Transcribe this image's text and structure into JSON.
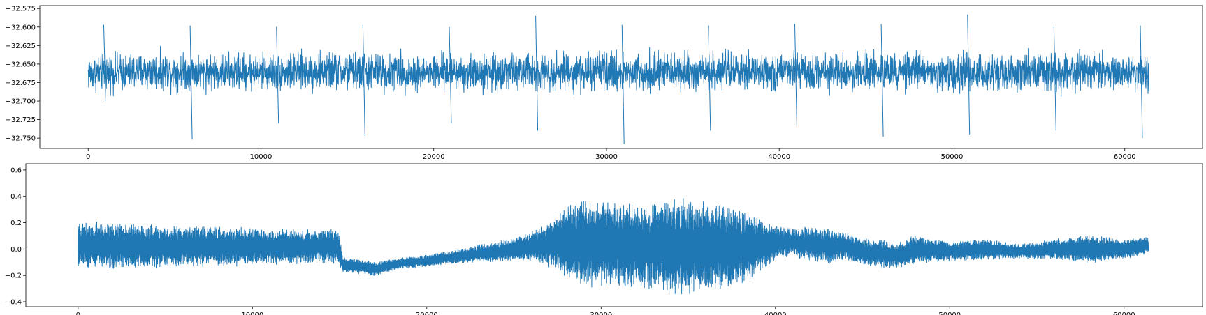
{
  "chart_data": [
    {
      "type": "line",
      "title": "",
      "xlabel": "",
      "ylabel": "",
      "xlim": [
        -2800,
        64500
      ],
      "ylim": [
        -32.764,
        -32.571
      ],
      "xticks": [
        0,
        10000,
        20000,
        30000,
        40000,
        50000,
        60000
      ],
      "xtick_labels": [
        "0",
        "10000",
        "20000",
        "30000",
        "40000",
        "50000",
        "60000"
      ],
      "yticks": [
        -32.575,
        -32.6,
        -32.625,
        -32.65,
        -32.675,
        -32.7,
        -32.725,
        -32.75
      ],
      "ytick_labels": [
        "−32.575",
        "−32.600",
        "−32.625",
        "−32.650",
        "−32.675",
        "−32.700",
        "−32.725",
        "−32.750"
      ],
      "grid": false,
      "color": "#1f77b4",
      "series": [
        {
          "name": "",
          "x": [
            0,
            5000,
            10000,
            15000,
            20000,
            25000,
            30000,
            35000,
            40000,
            45000,
            50000,
            55000,
            60000,
            61400
          ],
          "y": [
            -32.662,
            -32.66,
            -32.661,
            -32.66,
            -32.662,
            -32.66,
            -32.661,
            -32.66,
            -32.661,
            -32.66,
            -32.661,
            -32.66,
            -32.661,
            -32.662
          ],
          "band_half_width": [
            0.022,
            0.022,
            0.022,
            0.023,
            0.022,
            0.022,
            0.023,
            0.022,
            0.022,
            0.022,
            0.022,
            0.022,
            0.022,
            0.022
          ],
          "max_values": [
            -32.597,
            -32.598,
            -32.6,
            -32.597,
            -32.6,
            -32.585,
            -32.597,
            -32.598,
            -32.596,
            -32.596,
            -32.583,
            -32.6,
            -32.598,
            -32.61
          ],
          "min_values": [
            -32.7,
            -32.752,
            -32.73,
            -32.747,
            -32.73,
            -32.74,
            -32.758,
            -32.74,
            -32.735,
            -32.748,
            -32.745,
            -32.74,
            -32.75,
            -32.712
          ]
        }
      ]
    },
    {
      "type": "line",
      "title": "",
      "xlabel": "",
      "ylabel": "",
      "xlim": [
        -3000,
        64500
      ],
      "ylim": [
        -0.437,
        0.647
      ],
      "xticks": [
        0,
        10000,
        20000,
        30000,
        40000,
        50000,
        60000
      ],
      "xtick_labels": [
        "0",
        "10000",
        "20000",
        "30000",
        "40000",
        "50000",
        "60000"
      ],
      "yticks": [
        0.6,
        0.4,
        0.2,
        0.0,
        -0.2,
        -0.4
      ],
      "ytick_labels": [
        "0.6",
        "0.4",
        "0.2",
        "0.0",
        "−0.2",
        "−0.4"
      ],
      "grid": false,
      "color": "#1f77b4",
      "series": [
        {
          "name": "",
          "x": [
            0,
            2000,
            4000,
            6000,
            8000,
            10000,
            12000,
            14000,
            14900,
            15200,
            16000,
            17000,
            18000,
            19000,
            20000,
            22000,
            24000,
            25000,
            26000,
            27000,
            28000,
            29000,
            30000,
            31000,
            32000,
            33000,
            34000,
            35000,
            36000,
            37000,
            38000,
            39000,
            40000,
            41000,
            42000,
            43000,
            44000,
            45000,
            46000,
            47000,
            48000,
            50000,
            52000,
            54000,
            56000,
            58000,
            60000,
            61400
          ],
          "y": [
            0.03,
            0.03,
            0.02,
            0.02,
            0.02,
            0.02,
            0.02,
            0.02,
            0.02,
            -0.12,
            -0.13,
            -0.15,
            -0.12,
            -0.1,
            -0.09,
            -0.05,
            -0.02,
            0.0,
            0.02,
            0.04,
            0.05,
            0.04,
            0.04,
            0.03,
            0.02,
            0.02,
            0.02,
            0.02,
            0.02,
            0.01,
            0.02,
            0.03,
            0.05,
            0.05,
            0.04,
            0.02,
            0.02,
            -0.02,
            -0.03,
            -0.05,
            0.0,
            -0.02,
            0.0,
            -0.02,
            0.0,
            0.0,
            0.0,
            0.03
          ],
          "band_half_width": [
            0.16,
            0.16,
            0.15,
            0.14,
            0.14,
            0.13,
            0.12,
            0.12,
            0.12,
            0.06,
            0.05,
            0.05,
            0.04,
            0.04,
            0.04,
            0.05,
            0.07,
            0.08,
            0.1,
            0.16,
            0.26,
            0.3,
            0.3,
            0.3,
            0.3,
            0.31,
            0.33,
            0.33,
            0.32,
            0.3,
            0.27,
            0.2,
            0.12,
            0.1,
            0.12,
            0.12,
            0.1,
            0.09,
            0.1,
            0.09,
            0.1,
            0.07,
            0.07,
            0.05,
            0.07,
            0.1,
            0.07,
            0.06
          ]
        }
      ]
    }
  ]
}
